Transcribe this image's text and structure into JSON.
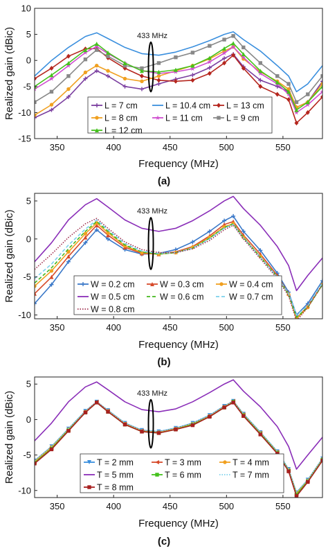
{
  "colors": {
    "blue_axis": "#1f77b4",
    "ellipse": "#000000"
  },
  "chart_data": [
    {
      "type": "line",
      "caption": "(a)",
      "xlabel": "Frequency (MHz)",
      "ylabel": "Realized gain (dBic)",
      "xlim": [
        330,
        585
      ],
      "ylim": [
        -15,
        10
      ],
      "xticks": [
        350,
        400,
        450,
        500,
        550
      ],
      "yticks": [
        -15,
        -10,
        -5,
        0,
        5,
        10
      ],
      "annotation": "433 MHz",
      "annotation_x": 433,
      "annotation_yrange": [
        -6,
        3.5
      ],
      "legend_location": "lower-center",
      "legend_cols": 3,
      "x": [
        330,
        345,
        360,
        375,
        385,
        395,
        410,
        425,
        440,
        455,
        470,
        485,
        498,
        506,
        515,
        530,
        545,
        555,
        562,
        572,
        585
      ],
      "series": [
        {
          "name": "L = 7 cm",
          "color": "#7b3fa0",
          "marker": "plus",
          "values": [
            -11,
            -9.5,
            -7,
            -3.5,
            -2,
            -3,
            -5,
            -5.5,
            -4.5,
            -3.6,
            -2.8,
            -1.4,
            0.4,
            1.2,
            -1.2,
            -3.8,
            -5,
            -6,
            -9,
            -8,
            -4
          ]
        },
        {
          "name": "L = 10.4 cm",
          "color": "#3a8fde",
          "marker": "none",
          "values": [
            -3,
            0,
            2.5,
            4.6,
            5.3,
            4.2,
            2.5,
            1.3,
            1,
            1.6,
            2.6,
            3.8,
            5,
            5.5,
            4,
            1.8,
            -1,
            -3,
            -6,
            -4.5,
            -1
          ]
        },
        {
          "name": "L = 13 cm",
          "color": "#b5261e",
          "marker": "diamond",
          "values": [
            -3.5,
            -1.5,
            0.8,
            2.2,
            2.3,
            0.5,
            -1.5,
            -3,
            -3.8,
            -4,
            -3.8,
            -2.5,
            -0.5,
            1,
            -1.5,
            -5,
            -6.5,
            -7.5,
            -12,
            -10,
            -7
          ]
        },
        {
          "name": "L = 8 cm",
          "color": "#f0a020",
          "marker": "circle",
          "values": [
            -10.5,
            -8.5,
            -5.5,
            -2.3,
            -1,
            -2,
            -3.5,
            -4,
            -3,
            -2,
            -1,
            0.3,
            1.8,
            2.6,
            0.3,
            -2.2,
            -4,
            -5.5,
            -9,
            -8,
            -4.5
          ]
        },
        {
          "name": "L = 11 cm",
          "color": "#cf4fcf",
          "marker": "star",
          "values": [
            -5.5,
            -3.5,
            -1,
            1.5,
            2.7,
            1.3,
            -0.5,
            -2,
            -2.5,
            -2.2,
            -1.6,
            -0.3,
            1.4,
            2.6,
            0.6,
            -2.5,
            -4.5,
            -6.5,
            -10,
            -8.5,
            -6
          ]
        },
        {
          "name": "L = 9 cm",
          "color": "#888888",
          "marker": "square",
          "values": [
            -8,
            -6,
            -3,
            0.2,
            2,
            0.8,
            -1,
            -1.5,
            -0.5,
            0.6,
            1.5,
            2.8,
            4,
            4.7,
            2.5,
            -0.5,
            -3,
            -4.5,
            -8,
            -6.5,
            -3
          ]
        },
        {
          "name": "L = 12 cm",
          "color": "#44c11c",
          "marker": "triangle",
          "values": [
            -5,
            -2.8,
            -0.5,
            2,
            3.2,
            1.5,
            -0.5,
            -2,
            -2.2,
            -1.8,
            -1,
            0.5,
            2.3,
            3.3,
            1.2,
            -2,
            -4.2,
            -6,
            -9.5,
            -8,
            -5
          ]
        }
      ]
    },
    {
      "type": "line",
      "caption": "(b)",
      "xlabel": "Frequency (MHz)",
      "ylabel": "Realized gain (dBic)",
      "xlim": [
        330,
        585
      ],
      "ylim": [
        -10.5,
        6
      ],
      "xticks": [
        350,
        400,
        450,
        500,
        550
      ],
      "yticks": [
        -10,
        -5,
        0,
        5
      ],
      "annotation": "433 MHz",
      "annotation_x": 433,
      "annotation_yrange": [
        -4,
        2.8
      ],
      "legend_location": "lower-left",
      "legend_cols": 3,
      "x": [
        330,
        345,
        360,
        375,
        385,
        395,
        410,
        425,
        440,
        455,
        470,
        485,
        498,
        506,
        515,
        530,
        545,
        555,
        562,
        572,
        585
      ],
      "series": [
        {
          "name": "W = 0.2 cm",
          "color": "#3a78c8",
          "marker": "plus",
          "values": [
            -8.5,
            -6,
            -3,
            -0.5,
            1.2,
            0,
            -1.4,
            -2,
            -1.9,
            -1.4,
            -0.4,
            1,
            2.4,
            3,
            1,
            -1.5,
            -4.5,
            -7,
            -10,
            -8.5,
            -5.5
          ]
        },
        {
          "name": "W = 0.3 cm",
          "color": "#d64a2a",
          "marker": "triangle",
          "values": [
            -7.2,
            -5,
            -2.3,
            0.2,
            1.8,
            0.5,
            -1.1,
            -1.9,
            -2,
            -1.7,
            -1,
            0.4,
            1.9,
            2.3,
            0.5,
            -2,
            -4.8,
            -7.2,
            -10.5,
            -8.8,
            -6
          ]
        },
        {
          "name": "W = 0.4 cm",
          "color": "#f0a020",
          "marker": "circle",
          "values": [
            -6.2,
            -4.2,
            -1.7,
            0.7,
            2.1,
            0.8,
            -0.9,
            -1.8,
            -2,
            -1.8,
            -1.1,
            0.2,
            1.6,
            2,
            0.2,
            -2.3,
            -5,
            -7.3,
            -10.5,
            -9,
            -6
          ]
        },
        {
          "name": "W = 0.5 cm",
          "color": "#8a2eb8",
          "marker": "none",
          "values": [
            -3,
            -0.5,
            2.5,
            4.5,
            5.3,
            4.2,
            2.5,
            1.4,
            1,
            1.4,
            2.4,
            3.7,
            5,
            5.6,
            4,
            1.8,
            -1,
            -3.5,
            -6.8,
            -4.8,
            -2.5
          ]
        },
        {
          "name": "W = 0.6 cm",
          "color": "#44b81c",
          "marker": "dashed",
          "values": [
            -5.8,
            -3.8,
            -1.3,
            1,
            2.3,
            1,
            -0.8,
            -1.7,
            -2,
            -1.8,
            -1.2,
            0.1,
            1.5,
            2,
            0.2,
            -2.4,
            -5,
            -7.3,
            -10.3,
            -9,
            -6
          ]
        },
        {
          "name": "W = 0.7 cm",
          "color": "#7ad0ec",
          "marker": "dashed",
          "values": [
            -5.2,
            -3.3,
            -0.8,
            1.3,
            2.5,
            1.2,
            -0.6,
            -1.6,
            -1.9,
            -1.8,
            -1.2,
            0,
            1.4,
            1.9,
            0.1,
            -2.4,
            -5,
            -7.2,
            -10,
            -8.8,
            -5.8
          ]
        },
        {
          "name": "W = 0.8 cm",
          "color": "#a03050",
          "marker": "dotted",
          "values": [
            -4,
            -2,
            0.2,
            2,
            2.7,
            1.4,
            -0.4,
            -1.4,
            -1.8,
            -1.8,
            -1.3,
            -0.2,
            1.2,
            1.8,
            0,
            -2.6,
            -5.2,
            -7.5,
            -10.8,
            -9,
            -6
          ]
        }
      ]
    },
    {
      "type": "line",
      "caption": "(c)",
      "xlabel": "Frequency (MHz)",
      "ylabel": "Realized gain (dBic)",
      "xlim": [
        330,
        585
      ],
      "ylim": [
        -11,
        6
      ],
      "xticks": [
        350,
        400,
        450,
        500,
        550
      ],
      "yticks": [
        -10,
        -5,
        0,
        5
      ],
      "annotation": "433 MHz",
      "annotation_x": 433,
      "annotation_yrange": [
        -4,
        2.8
      ],
      "legend_location": "lower-left",
      "legend_cols": 3,
      "x": [
        330,
        345,
        360,
        375,
        385,
        395,
        410,
        425,
        440,
        455,
        470,
        485,
        498,
        506,
        515,
        530,
        545,
        555,
        562,
        572,
        585
      ],
      "series": [
        {
          "name": "T = 2 mm",
          "color": "#3a8fde",
          "marker": "triangle-down",
          "values": [
            -5.8,
            -3.8,
            -1.3,
            1.2,
            2.5,
            1.3,
            -0.5,
            -1.5,
            -1.7,
            -1.2,
            -0.5,
            0.6,
            1.9,
            2.6,
            0.8,
            -1.8,
            -4.5,
            -7,
            -10.3,
            -8.5,
            -5.5
          ]
        },
        {
          "name": "T = 3 mm",
          "color": "#d64a2a",
          "marker": "arrow",
          "values": [
            -6,
            -4,
            -1.5,
            1.1,
            2.5,
            1.2,
            -0.6,
            -1.6,
            -1.8,
            -1.3,
            -0.6,
            0.5,
            1.8,
            2.6,
            0.7,
            -1.9,
            -4.6,
            -7.2,
            -10.5,
            -8.6,
            -5.6
          ]
        },
        {
          "name": "T = 4 mm",
          "color": "#f0a020",
          "marker": "circle",
          "values": [
            -5.9,
            -3.9,
            -1.4,
            1.1,
            2.4,
            1.2,
            -0.6,
            -1.6,
            -1.8,
            -1.3,
            -0.6,
            0.5,
            1.8,
            2.5,
            0.7,
            -1.9,
            -4.6,
            -7.1,
            -10.4,
            -8.6,
            -5.6
          ]
        },
        {
          "name": "T = 5 mm",
          "color": "#8a2eb8",
          "marker": "none",
          "values": [
            -3,
            -0.5,
            2.5,
            4.6,
            5.3,
            4.2,
            2.5,
            1.4,
            1.1,
            1.5,
            2.5,
            3.8,
            5,
            5.6,
            4,
            1.8,
            -1,
            -3.8,
            -7,
            -5,
            -2.5
          ]
        },
        {
          "name": "T = 6 mm",
          "color": "#44c11c",
          "marker": "square",
          "values": [
            -6.1,
            -4.1,
            -1.5,
            1,
            2.4,
            1.1,
            -0.7,
            -1.7,
            -1.9,
            -1.4,
            -0.7,
            0.4,
            1.7,
            2.5,
            0.6,
            -2,
            -4.7,
            -7.2,
            -10.6,
            -8.7,
            -5.7
          ]
        },
        {
          "name": "T = 7 mm",
          "color": "#7ad0ec",
          "marker": "dotted",
          "values": [
            -5.8,
            -3.8,
            -1.3,
            1.2,
            2.5,
            1.3,
            -0.5,
            -1.5,
            -1.7,
            -1.2,
            -0.5,
            0.6,
            1.9,
            2.6,
            0.8,
            -1.8,
            -4.5,
            -7,
            -10.2,
            -8.5,
            -5.5
          ]
        },
        {
          "name": "T = 8 mm",
          "color": "#a82020",
          "marker": "square",
          "values": [
            -6.2,
            -4.2,
            -1.6,
            1,
            2.4,
            1.1,
            -0.7,
            -1.7,
            -1.9,
            -1.4,
            -0.8,
            0.4,
            1.7,
            2.4,
            0.5,
            -2.1,
            -4.8,
            -7.3,
            -10.8,
            -8.8,
            -5.8
          ]
        }
      ]
    }
  ]
}
